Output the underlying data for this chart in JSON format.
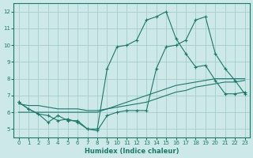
{
  "xlabel": "Humidex (Indice chaleur)",
  "xlim": [
    -0.5,
    23.5
  ],
  "ylim": [
    4.5,
    12.5
  ],
  "yticks": [
    5,
    6,
    7,
    8,
    9,
    10,
    11,
    12
  ],
  "xticks": [
    0,
    1,
    2,
    3,
    4,
    5,
    6,
    7,
    8,
    9,
    10,
    11,
    12,
    13,
    14,
    15,
    16,
    17,
    18,
    19,
    20,
    21,
    22,
    23
  ],
  "bg_color": "#cce8e8",
  "grid_color": "#aad0d0",
  "line_color": "#1a7a6a",
  "line1_x": [
    0,
    1,
    2,
    3,
    4,
    5,
    6,
    7,
    8,
    9,
    10,
    11,
    12,
    13,
    14,
    15,
    16,
    17,
    18,
    19,
    20,
    21,
    22,
    23
  ],
  "line1_y": [
    6.6,
    6.2,
    5.9,
    5.4,
    5.8,
    5.5,
    5.5,
    5.0,
    5.0,
    8.6,
    9.9,
    10.0,
    10.3,
    11.5,
    11.7,
    12.0,
    10.4,
    9.5,
    8.7,
    8.8,
    7.9,
    7.1,
    7.1,
    7.2
  ],
  "line2_x": [
    0,
    1,
    2,
    3,
    4,
    5,
    6,
    7,
    8,
    9,
    10,
    11,
    12,
    13,
    14,
    15,
    16,
    17,
    18,
    19,
    20,
    21,
    22,
    23
  ],
  "line2_y": [
    6.6,
    6.2,
    5.9,
    5.8,
    5.5,
    5.6,
    5.4,
    5.0,
    4.9,
    5.8,
    6.0,
    6.1,
    6.1,
    6.1,
    8.6,
    9.9,
    10.0,
    10.3,
    11.5,
    11.7,
    9.5,
    8.6,
    7.9,
    7.1
  ],
  "line3_x": [
    0,
    1,
    2,
    3,
    4,
    5,
    6,
    7,
    8,
    9,
    10,
    11,
    12,
    13,
    14,
    15,
    16,
    17,
    18,
    19,
    20,
    21,
    22,
    23
  ],
  "line3_y": [
    6.5,
    6.4,
    6.4,
    6.3,
    6.2,
    6.2,
    6.2,
    6.1,
    6.1,
    6.2,
    6.3,
    6.4,
    6.5,
    6.6,
    6.8,
    7.0,
    7.2,
    7.3,
    7.5,
    7.6,
    7.7,
    7.8,
    7.8,
    7.9
  ],
  "line4_x": [
    0,
    1,
    2,
    3,
    4,
    5,
    6,
    7,
    8,
    9,
    10,
    11,
    12,
    13,
    14,
    15,
    16,
    17,
    18,
    19,
    20,
    21,
    22,
    23
  ],
  "line4_y": [
    6.0,
    6.0,
    6.0,
    6.0,
    6.0,
    6.0,
    6.0,
    6.0,
    6.0,
    6.2,
    6.4,
    6.6,
    6.8,
    7.0,
    7.2,
    7.4,
    7.6,
    7.7,
    7.8,
    7.9,
    8.0,
    8.0,
    8.0,
    8.0
  ]
}
